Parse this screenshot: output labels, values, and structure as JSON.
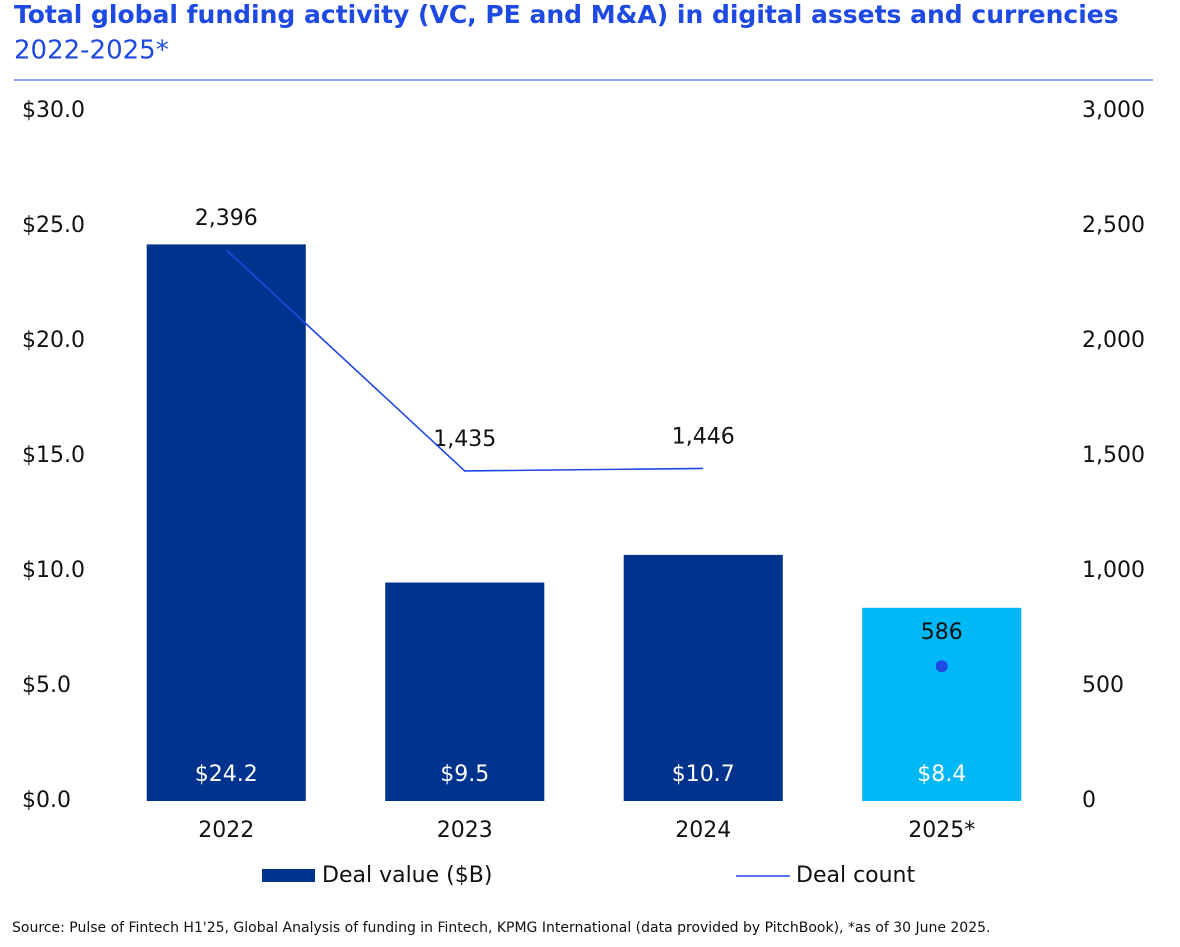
{
  "chart_data": {
    "type": "bar",
    "title": "Total global funding activity (VC, PE and M&A) in digital assets and currencies",
    "subtitle": "2022-2025*",
    "categories": [
      "2022",
      "2023",
      "2024",
      "2025*"
    ],
    "series": [
      {
        "name": "Deal value ($B)",
        "type": "bar",
        "colors": [
          "#00338d",
          "#00338d",
          "#00338d",
          "#00b8f5"
        ],
        "values": [
          24.2,
          9.5,
          10.7,
          8.4
        ],
        "value_labels": [
          "$24.2",
          "$9.5",
          "$10.7",
          "$8.4"
        ]
      },
      {
        "name": "Deal count",
        "type": "line",
        "axis": "y2",
        "color": "#1e49e2",
        "values": [
          2396,
          1435,
          1446,
          586
        ],
        "value_labels": [
          "2,396",
          "1,435",
          "1,446",
          "586"
        ],
        "marker_only": [
          3
        ]
      }
    ],
    "ylim": [
      0,
      30
    ],
    "yticks": [
      {
        "value": 0,
        "label": "$0.0"
      },
      {
        "value": 5,
        "label": "$5.0"
      },
      {
        "value": 10,
        "label": "$10.0"
      },
      {
        "value": 15,
        "label": "$15.0"
      },
      {
        "value": 20,
        "label": "$20.0"
      },
      {
        "value": 25,
        "label": "$25.0"
      },
      {
        "value": 30,
        "label": "$30.0"
      }
    ],
    "y2lim": [
      0,
      3000
    ],
    "y2ticks": [
      0,
      500,
      {
        "value": 1000,
        "label": "1,000"
      },
      {
        "value": 1500,
        "label": "1,500"
      },
      {
        "value": 2000,
        "label": "2,000"
      },
      {
        "value": 2500,
        "label": "2,500"
      },
      {
        "value": 3000,
        "label": "3,000"
      }
    ],
    "grid": false,
    "legend": "bottom",
    "source": "Source: Pulse of Fintech H1'25, Global Analysis of funding in Fintech, KPMG International (data provided by PitchBook), *as of 30 June 2025."
  }
}
